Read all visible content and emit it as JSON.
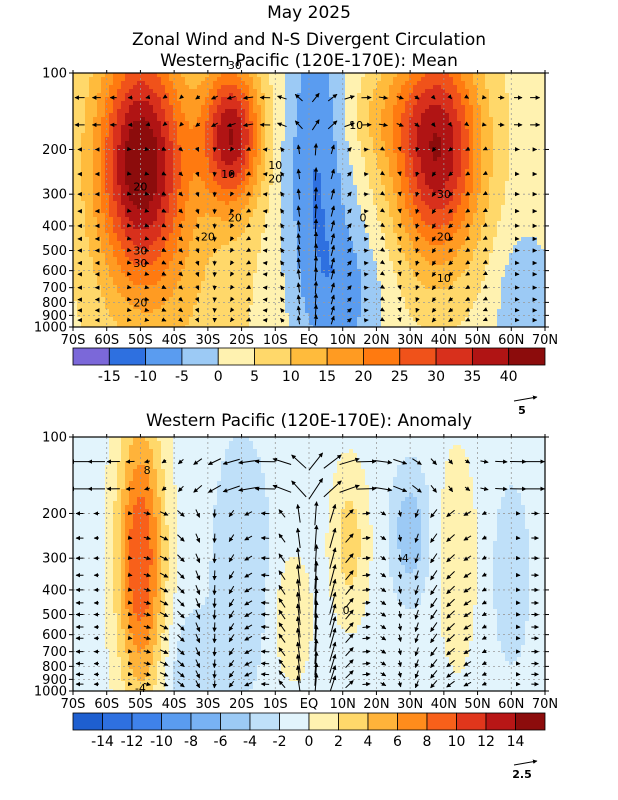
{
  "titles": {
    "line1": "May 2025",
    "line2": "Zonal Wind and N-S Divergent Circulation",
    "line3": "Western Pacific (120E-170E): Mean",
    "panel2": "Western Pacific (120E-170E): Anomaly"
  },
  "chart_data": [
    {
      "type": "heatmap",
      "title": "Western Pacific (120E-170E): Mean",
      "x_tick_labels": [
        "70S",
        "60S",
        "50S",
        "40S",
        "30S",
        "20S",
        "10S",
        "EQ",
        "10N",
        "20N",
        "30N",
        "40N",
        "50N",
        "60N",
        "70N"
      ],
      "y_tick_labels": [
        "100",
        "200",
        "300",
        "400",
        "500",
        "600",
        "700",
        "800",
        "900",
        "1000"
      ],
      "y_tick_values": [
        100,
        200,
        300,
        400,
        500,
        600,
        700,
        800,
        900,
        1000
      ],
      "y_scale": "log-pressure",
      "xlim": [
        -70,
        70
      ],
      "ylim": [
        1000,
        100
      ],
      "grid": true,
      "colorbar": {
        "levels": [
          -20,
          -15,
          -10,
          -5,
          0,
          5,
          10,
          15,
          20,
          25,
          30,
          35,
          40,
          45
        ],
        "tick_labels": [
          "-15",
          "-10",
          "-5",
          "0",
          "5",
          "10",
          "15",
          "20",
          "25",
          "30",
          "35",
          "40"
        ],
        "colors": [
          "#7b68d9",
          "#2e70e0",
          "#5a9cf0",
          "#9ccaf5",
          "#fff2b0",
          "#ffd86a",
          "#ffbb3c",
          "#ff9b22",
          "#ff7a10",
          "#f0521a",
          "#d8301c",
          "#b01414",
          "#8c0c0c"
        ]
      },
      "contour_labels": [
        "30",
        "20",
        "30",
        "30",
        "20",
        "10",
        "10",
        "20",
        "10",
        "30",
        "20",
        "0",
        "20",
        "10",
        "20"
      ],
      "vector_reference": "5",
      "jets": [
        {
          "lat": -50,
          "p": 220,
          "max": 42
        },
        {
          "lat": -23,
          "p": 180,
          "max": 38
        },
        {
          "lat": 38,
          "p": 200,
          "max": 40
        }
      ],
      "easterlies": [
        {
          "lat": 2,
          "p": 250,
          "min": -10
        },
        {
          "lat": 12,
          "p": 780,
          "min": -6
        },
        {
          "lat": 64,
          "p": 850,
          "min": -5
        }
      ]
    },
    {
      "type": "heatmap",
      "title": "Western Pacific (120E-170E): Anomaly",
      "x_tick_labels": [
        "70S",
        "60S",
        "50S",
        "40S",
        "30S",
        "20S",
        "10S",
        "EQ",
        "10N",
        "20N",
        "30N",
        "40N",
        "50N",
        "60N",
        "70N"
      ],
      "y_tick_labels": [
        "100",
        "200",
        "300",
        "400",
        "500",
        "600",
        "700",
        "800",
        "900",
        "1000"
      ],
      "y_tick_values": [
        100,
        200,
        300,
        400,
        500,
        600,
        700,
        800,
        900,
        1000
      ],
      "y_scale": "log-pressure",
      "xlim": [
        -70,
        70
      ],
      "ylim": [
        1000,
        100
      ],
      "grid": true,
      "colorbar": {
        "levels": [
          -16,
          -14,
          -12,
          -10,
          -8,
          -6,
          -4,
          -2,
          0,
          2,
          4,
          6,
          8,
          10,
          12,
          14,
          16
        ],
        "tick_labels": [
          "-14",
          "-12",
          "-10",
          "-8",
          "-6",
          "-4",
          "-2",
          "0",
          "2",
          "4",
          "6",
          "8",
          "10",
          "12",
          "14"
        ],
        "colors": [
          "#1e5fd0",
          "#2e70e0",
          "#3f82ea",
          "#5a9cf0",
          "#78b2f4",
          "#9ccaf5",
          "#bfe0f9",
          "#e2f4fc",
          "#fff2b0",
          "#ffd86a",
          "#ffb33a",
          "#ff8c1c",
          "#f8601a",
          "#e0361c",
          "#b81616",
          "#8c0c0c"
        ]
      },
      "contour_labels": [
        "8",
        "-4",
        "-4",
        "0"
      ],
      "vector_reference": "2.5"
    }
  ]
}
